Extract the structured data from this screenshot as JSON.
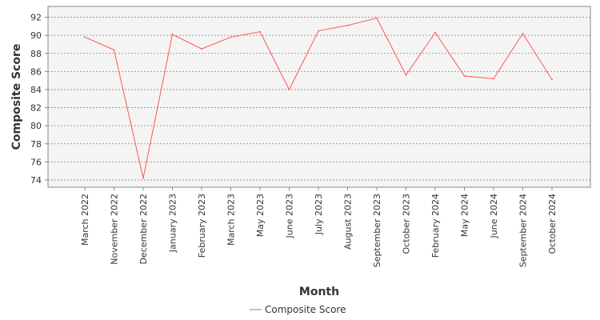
{
  "chart_data": {
    "type": "line",
    "title": "",
    "xlabel": "Month",
    "ylabel": "Composite Score",
    "ylim": [
      73.2,
      93.2
    ],
    "yticks": [
      74,
      76,
      78,
      80,
      82,
      84,
      86,
      88,
      90,
      92
    ],
    "grid": true,
    "legend_position": "bottom-center",
    "categories": [
      "March 2022",
      "November 2022",
      "December 2022",
      "January 2023",
      "February 2023",
      "March 2023",
      "May 2023",
      "June 2023",
      "July 2023",
      "August 2023",
      "September 2023",
      "October 2023",
      "February 2024",
      "May 2024",
      "June 2024",
      "September 2024",
      "October 2024"
    ],
    "series": [
      {
        "name": "Composite Score",
        "color": "#ff5555",
        "values": [
          89.8,
          88.4,
          74.2,
          90.1,
          88.5,
          89.8,
          90.4,
          84.0,
          90.5,
          91.1,
          91.9,
          85.6,
          90.3,
          85.5,
          85.2,
          90.2,
          85.1
        ]
      }
    ],
    "colors": {
      "plot_background": "#f4f4f4",
      "grid": "#888888",
      "axis": "#888888"
    }
  }
}
